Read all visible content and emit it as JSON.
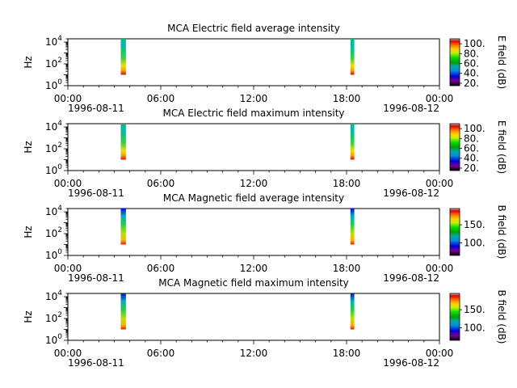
{
  "chart_data": [
    {
      "type": "heatmap",
      "title": "MCA  Electric field average intensity",
      "ylabel": "Hz",
      "y_ticks": [
        {
          "base": "10",
          "exp": "0"
        },
        {
          "base": "10",
          "exp": "2"
        },
        {
          "base": "10",
          "exp": "4"
        }
      ],
      "y_scale": "log",
      "ylim": [
        1,
        20000
      ],
      "x_ticks": [
        "00:00",
        "06:00",
        "12:00",
        "18:00",
        "00:00"
      ],
      "x_dates": [
        "1996-08-11",
        "1996-08-12"
      ],
      "xlim": [
        "1996-08-11 00:00",
        "1996-08-12 00:00"
      ],
      "colorbar": {
        "label": "E field (dB)",
        "ticks": [
          "20.",
          "40.",
          "60.",
          "80.",
          "100."
        ],
        "range": [
          15,
          110
        ],
        "colormap": "nipy_spectral"
      },
      "bursts": [
        {
          "start": "03:25",
          "end": "03:45",
          "freq_range_hz": [
            10,
            20000
          ]
        },
        {
          "start": "18:15",
          "end": "18:30",
          "freq_range_hz": [
            10,
            20000
          ]
        }
      ]
    },
    {
      "type": "heatmap",
      "title": "MCA  Electric field maximum intensity",
      "ylabel": "Hz",
      "y_ticks": [
        {
          "base": "10",
          "exp": "0"
        },
        {
          "base": "10",
          "exp": "2"
        },
        {
          "base": "10",
          "exp": "4"
        }
      ],
      "y_scale": "log",
      "ylim": [
        1,
        20000
      ],
      "x_ticks": [
        "00:00",
        "06:00",
        "12:00",
        "18:00",
        "00:00"
      ],
      "x_dates": [
        "1996-08-11",
        "1996-08-12"
      ],
      "xlim": [
        "1996-08-11 00:00",
        "1996-08-12 00:00"
      ],
      "colorbar": {
        "label": "E field (dB)",
        "ticks": [
          "20.",
          "40.",
          "60.",
          "80.",
          "100."
        ],
        "range": [
          15,
          110
        ],
        "colormap": "nipy_spectral"
      },
      "bursts": [
        {
          "start": "03:25",
          "end": "03:45",
          "freq_range_hz": [
            10,
            20000
          ]
        },
        {
          "start": "18:15",
          "end": "18:30",
          "freq_range_hz": [
            10,
            20000
          ]
        }
      ]
    },
    {
      "type": "heatmap",
      "title": "MCA  Magnetic field average intensity",
      "ylabel": "Hz",
      "y_ticks": [
        {
          "base": "10",
          "exp": "0"
        },
        {
          "base": "10",
          "exp": "2"
        },
        {
          "base": "10",
          "exp": "4"
        }
      ],
      "y_scale": "log",
      "ylim": [
        1,
        20000
      ],
      "x_ticks": [
        "00:00",
        "06:00",
        "12:00",
        "18:00",
        "00:00"
      ],
      "x_dates": [
        "1996-08-11",
        "1996-08-12"
      ],
      "xlim": [
        "1996-08-11 00:00",
        "1996-08-12 00:00"
      ],
      "colorbar": {
        "label": "B field (dB)",
        "ticks": [
          "100.",
          "150."
        ],
        "range": [
          65,
          195
        ],
        "colormap": "nipy_spectral"
      },
      "bursts": [
        {
          "start": "03:25",
          "end": "03:45",
          "freq_range_hz": [
            10,
            20000
          ]
        },
        {
          "start": "18:15",
          "end": "18:30",
          "freq_range_hz": [
            10,
            20000
          ]
        }
      ]
    },
    {
      "type": "heatmap",
      "title": "MCA  Magnetic field maximum intensity",
      "ylabel": "Hz",
      "y_ticks": [
        {
          "base": "10",
          "exp": "0"
        },
        {
          "base": "10",
          "exp": "2"
        },
        {
          "base": "10",
          "exp": "4"
        }
      ],
      "y_scale": "log",
      "ylim": [
        1,
        20000
      ],
      "x_ticks": [
        "00:00",
        "06:00",
        "12:00",
        "18:00",
        "00:00"
      ],
      "x_dates": [
        "1996-08-11",
        "1996-08-12"
      ],
      "xlim": [
        "1996-08-11 00:00",
        "1996-08-12 00:00"
      ],
      "colorbar": {
        "label": "B field (dB)",
        "ticks": [
          "100.",
          "150."
        ],
        "range": [
          65,
          195
        ],
        "colormap": "nipy_spectral"
      },
      "bursts": [
        {
          "start": "03:25",
          "end": "03:45",
          "freq_range_hz": [
            10,
            20000
          ]
        },
        {
          "start": "18:15",
          "end": "18:30",
          "freq_range_hz": [
            10,
            20000
          ]
        }
      ]
    }
  ]
}
